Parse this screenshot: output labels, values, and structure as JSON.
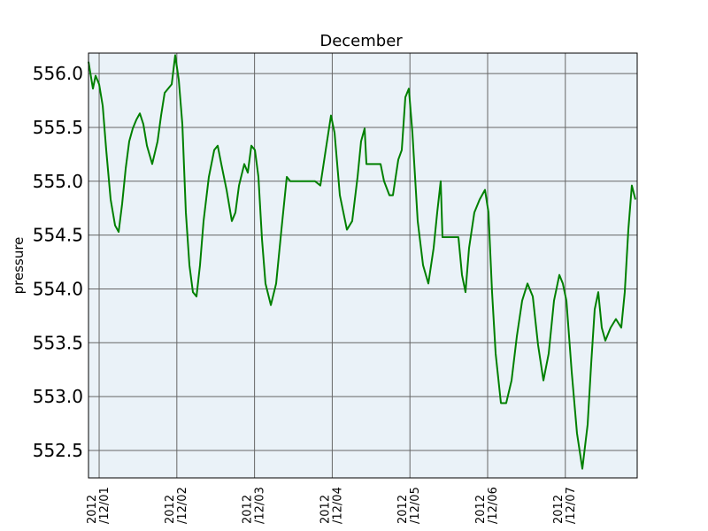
{
  "chart_data": {
    "type": "line",
    "title": "December",
    "y_label": "pressure",
    "color": "#008000",
    "grid": true,
    "xlim": [
      0.863,
      7.925
    ],
    "ylim": [
      552.245,
      556.19
    ],
    "xticks": [
      {
        "value": 1,
        "label": "2012/12/01"
      },
      {
        "value": 2,
        "label": "2012/12/02"
      },
      {
        "value": 3,
        "label": "2012/12/03"
      },
      {
        "value": 4,
        "label": "2012/12/04"
      },
      {
        "value": 5,
        "label": "2012/12/05"
      },
      {
        "value": 6,
        "label": "2012/12/06"
      },
      {
        "value": 7,
        "label": "2012/12/07"
      }
    ],
    "yticks": [
      {
        "value": 552.5,
        "label": "552.5"
      },
      {
        "value": 553,
        "label": "553.0"
      },
      {
        "value": 553.5,
        "label": "553.5"
      },
      {
        "value": 554,
        "label": "554.0"
      },
      {
        "value": 554.5,
        "label": "554.5"
      },
      {
        "value": 555,
        "label": "555.0"
      },
      {
        "value": 555.5,
        "label": "555.5"
      },
      {
        "value": 556,
        "label": "556.0"
      }
    ],
    "x": [
      0.863,
      0.92,
      0.954,
      1.0,
      1.046,
      1.091,
      1.148,
      1.205,
      1.251,
      1.296,
      1.342,
      1.387,
      1.433,
      1.478,
      1.524,
      1.569,
      1.615,
      1.683,
      1.752,
      1.797,
      1.843,
      1.888,
      1.934,
      1.979,
      2.025,
      2.071,
      2.116,
      2.162,
      2.207,
      2.253,
      2.298,
      2.344,
      2.412,
      2.481,
      2.526,
      2.572,
      2.64,
      2.708,
      2.754,
      2.8,
      2.868,
      2.913,
      2.959,
      3.005,
      3.05,
      3.096,
      3.141,
      3.21,
      3.278,
      3.346,
      3.415,
      3.46,
      3.779,
      3.847,
      3.916,
      3.984,
      4.03,
      4.098,
      4.189,
      4.257,
      4.326,
      4.371,
      4.417,
      4.44,
      4.622,
      4.667,
      4.736,
      4.781,
      4.85,
      4.895,
      4.941,
      4.986,
      5.032,
      5.1,
      5.169,
      5.237,
      5.305,
      5.351,
      5.396,
      5.419,
      5.624,
      5.67,
      5.715,
      5.761,
      5.829,
      5.897,
      5.966,
      6.011,
      6.057,
      6.103,
      6.171,
      6.239,
      6.308,
      6.376,
      6.444,
      6.513,
      6.581,
      6.649,
      6.718,
      6.786,
      6.854,
      6.923,
      6.968,
      7.014,
      7.082,
      7.15,
      7.219,
      7.287,
      7.333,
      7.378,
      7.424,
      7.469,
      7.515,
      7.583,
      7.651,
      7.72,
      7.765,
      7.811,
      7.856,
      7.902
    ],
    "values": [
      556.11,
      555.86,
      555.98,
      555.9,
      555.7,
      555.29,
      554.83,
      554.59,
      554.53,
      554.79,
      555.12,
      555.37,
      555.49,
      555.57,
      555.63,
      555.53,
      555.33,
      555.16,
      555.37,
      555.61,
      555.82,
      555.86,
      555.9,
      556.17,
      555.94,
      555.53,
      554.71,
      554.22,
      553.97,
      553.93,
      554.22,
      554.63,
      555.04,
      555.29,
      555.33,
      555.16,
      554.92,
      554.63,
      554.71,
      554.96,
      555.16,
      555.08,
      555.33,
      555.29,
      555.04,
      554.46,
      554.05,
      553.85,
      554.05,
      554.55,
      555.04,
      555.0,
      555.0,
      554.96,
      555.29,
      555.61,
      555.45,
      554.87,
      554.55,
      554.63,
      555.04,
      555.37,
      555.49,
      555.16,
      555.16,
      555.0,
      554.87,
      554.87,
      555.2,
      555.29,
      555.78,
      555.86,
      555.45,
      554.63,
      554.22,
      554.05,
      554.38,
      554.71,
      555.0,
      554.48,
      554.48,
      554.13,
      553.97,
      554.38,
      554.71,
      554.83,
      554.92,
      554.71,
      553.97,
      553.4,
      552.94,
      552.94,
      553.15,
      553.56,
      553.89,
      554.05,
      553.93,
      553.48,
      553.15,
      553.4,
      553.89,
      554.13,
      554.05,
      553.89,
      553.23,
      552.66,
      552.33,
      552.74,
      553.31,
      553.81,
      553.97,
      553.64,
      553.52,
      553.64,
      553.72,
      553.64,
      553.97,
      554.55,
      554.96,
      554.83
    ]
  }
}
